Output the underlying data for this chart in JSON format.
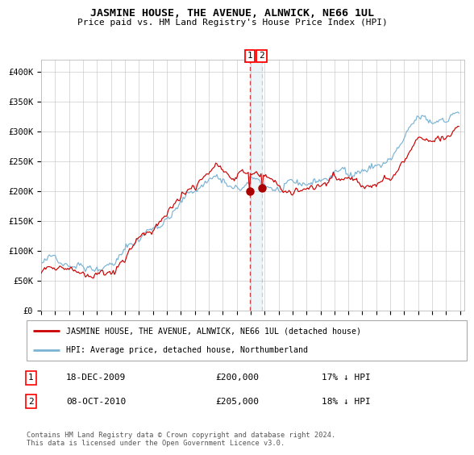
{
  "title": "JASMINE HOUSE, THE AVENUE, ALNWICK, NE66 1UL",
  "subtitle": "Price paid vs. HM Land Registry's House Price Index (HPI)",
  "legend_line1": "JASMINE HOUSE, THE AVENUE, ALNWICK, NE66 1UL (detached house)",
  "legend_line2": "HPI: Average price, detached house, Northumberland",
  "transaction1_date": "18-DEC-2009",
  "transaction1_price": 200000,
  "transaction1_label": "1",
  "transaction1_hpi": "17% ↓ HPI",
  "transaction2_date": "08-OCT-2010",
  "transaction2_price": 205000,
  "transaction2_label": "2",
  "transaction2_hpi": "18% ↓ HPI",
  "footnote": "Contains HM Land Registry data © Crown copyright and database right 2024.\nThis data is licensed under the Open Government Licence v3.0.",
  "hpi_color": "#7ab3d4",
  "price_color": "#cc0000",
  "marker_color": "#aa0000",
  "vline1_color": "#cc2222",
  "vline2_color": "#7ab3d4",
  "grid_color": "#cccccc",
  "bg_color": "#ffffff",
  "ylim_max": 420000,
  "ylim_min": 0,
  "start_year": 1995,
  "end_year": 2025
}
